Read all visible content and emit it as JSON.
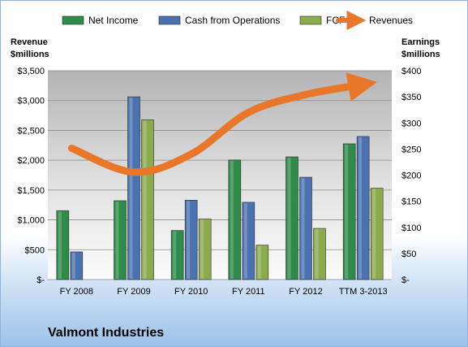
{
  "chart_data": {
    "type": "bar",
    "title": "Valmont Industries",
    "categories": [
      "FY 2008",
      "FY 2009",
      "FY 2010",
      "FY 2011",
      "FY 2012",
      "TTM 3-2013"
    ],
    "series": [
      {
        "name": "Net Income",
        "axis": "right",
        "values": [
          132,
          151,
          94,
          229,
          235,
          260
        ],
        "color": "#2e8b4a"
      },
      {
        "name": "Cash from Operations",
        "axis": "right",
        "values": [
          53,
          350,
          152,
          148,
          196,
          274
        ],
        "color": "#4a72b0"
      },
      {
        "name": "FCF",
        "axis": "right",
        "values": [
          0,
          306,
          116,
          66,
          98,
          175
        ],
        "color": "#8bab4c"
      },
      {
        "name": "Revenues",
        "axis": "left",
        "type": "line",
        "values": [
          2200,
          1800,
          2100,
          2800,
          3100,
          3260
        ],
        "color": "#e8772a"
      }
    ],
    "left_axis": {
      "label_line1": "Revenue",
      "label_line2": "$millions",
      "ylim": [
        0,
        3500
      ],
      "ticks": [
        "$-",
        "$500",
        "$1,000",
        "$1,500",
        "$2,000",
        "$2,500",
        "$3,000",
        "$3,500"
      ]
    },
    "right_axis": {
      "label_line1": "Earnings",
      "label_line2": "$millions",
      "ylim": [
        0,
        400
      ],
      "ticks": [
        "$-",
        "$50",
        "$100",
        "$150",
        "$200",
        "$250",
        "$300",
        "$350",
        "$400"
      ]
    },
    "legend_position": "top",
    "grid": true
  }
}
